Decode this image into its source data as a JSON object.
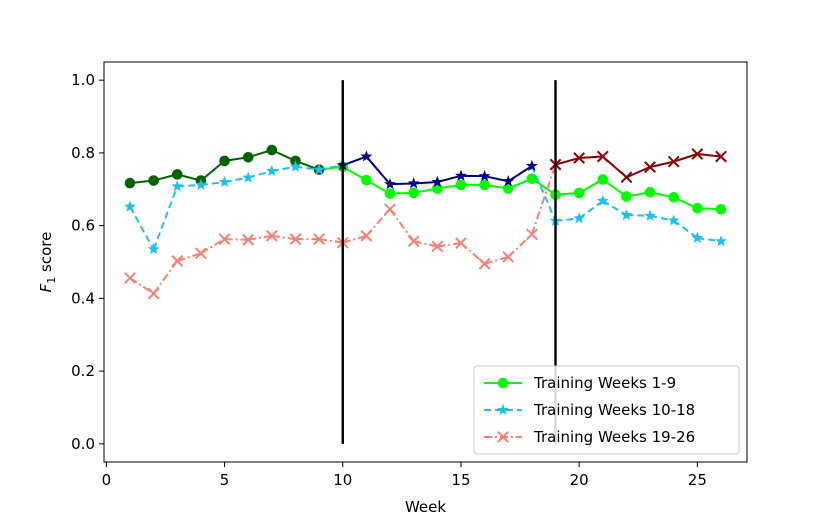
{
  "chart_data": {
    "type": "line",
    "title": "",
    "xlabel": "Week",
    "ylabel_prefix": "F",
    "ylabel_sub": "1",
    "ylabel_suffix": " score",
    "xlim": [
      -0.1,
      27.1
    ],
    "ylim": [
      -0.05,
      1.05
    ],
    "x_ticks": [
      0,
      5,
      10,
      15,
      20,
      25
    ],
    "x_tick_labels": [
      "0",
      "5",
      "10",
      "15",
      "20",
      "25"
    ],
    "y_ticks": [
      0.0,
      0.2,
      0.4,
      0.6,
      0.8,
      1.0
    ],
    "y_tick_labels": [
      "0.0",
      "0.2",
      "0.4",
      "0.6",
      "0.8",
      "1.0"
    ],
    "vertical_lines": [
      10,
      19
    ],
    "vertical_line_range": [
      0,
      1.0
    ],
    "legend_position": "lower-right",
    "x": [
      1,
      2,
      3,
      4,
      5,
      6,
      7,
      8,
      9,
      10,
      11,
      12,
      13,
      14,
      15,
      16,
      17,
      18,
      19,
      20,
      21,
      22,
      23,
      24,
      25,
      26
    ],
    "series": [
      {
        "name": "Training Weeks 1-9",
        "values": [
          0.717,
          0.724,
          0.741,
          0.724,
          0.778,
          0.788,
          0.808,
          0.778,
          0.754,
          0.762,
          0.725,
          0.688,
          0.69,
          0.702,
          0.712,
          0.712,
          0.702,
          0.729,
          0.685,
          0.69,
          0.727,
          0.68,
          0.692,
          0.678,
          0.648,
          0.645
        ],
        "train_range": [
          1,
          9
        ],
        "color": "#00ff00",
        "dark_color": "#006400",
        "marker": "circle",
        "dash": "solid"
      },
      {
        "name": "Training Weeks 10-18",
        "values": [
          0.652,
          0.535,
          0.708,
          0.712,
          0.72,
          0.732,
          0.75,
          0.762,
          0.754,
          0.766,
          0.79,
          0.714,
          0.716,
          0.72,
          0.737,
          0.736,
          0.722,
          0.764,
          0.613,
          0.62,
          0.668,
          0.629,
          0.627,
          0.614,
          0.566,
          0.557
        ],
        "train_range": [
          10,
          18
        ],
        "color": "#1ec0ef",
        "dark_color": "#00008b",
        "marker": "star",
        "dash": "dashed"
      },
      {
        "name": "Training Weeks 19-26",
        "values": [
          0.456,
          0.413,
          0.503,
          0.524,
          0.563,
          0.561,
          0.572,
          0.563,
          0.563,
          0.553,
          0.572,
          0.645,
          0.557,
          0.543,
          0.552,
          0.495,
          0.514,
          0.576,
          0.768,
          0.786,
          0.79,
          0.733,
          0.761,
          0.776,
          0.797,
          0.79
        ],
        "train_range": [
          19,
          26
        ],
        "color": "#fa8072",
        "dark_color": "#8b0000",
        "marker": "x",
        "dash": "dashdot"
      }
    ]
  }
}
